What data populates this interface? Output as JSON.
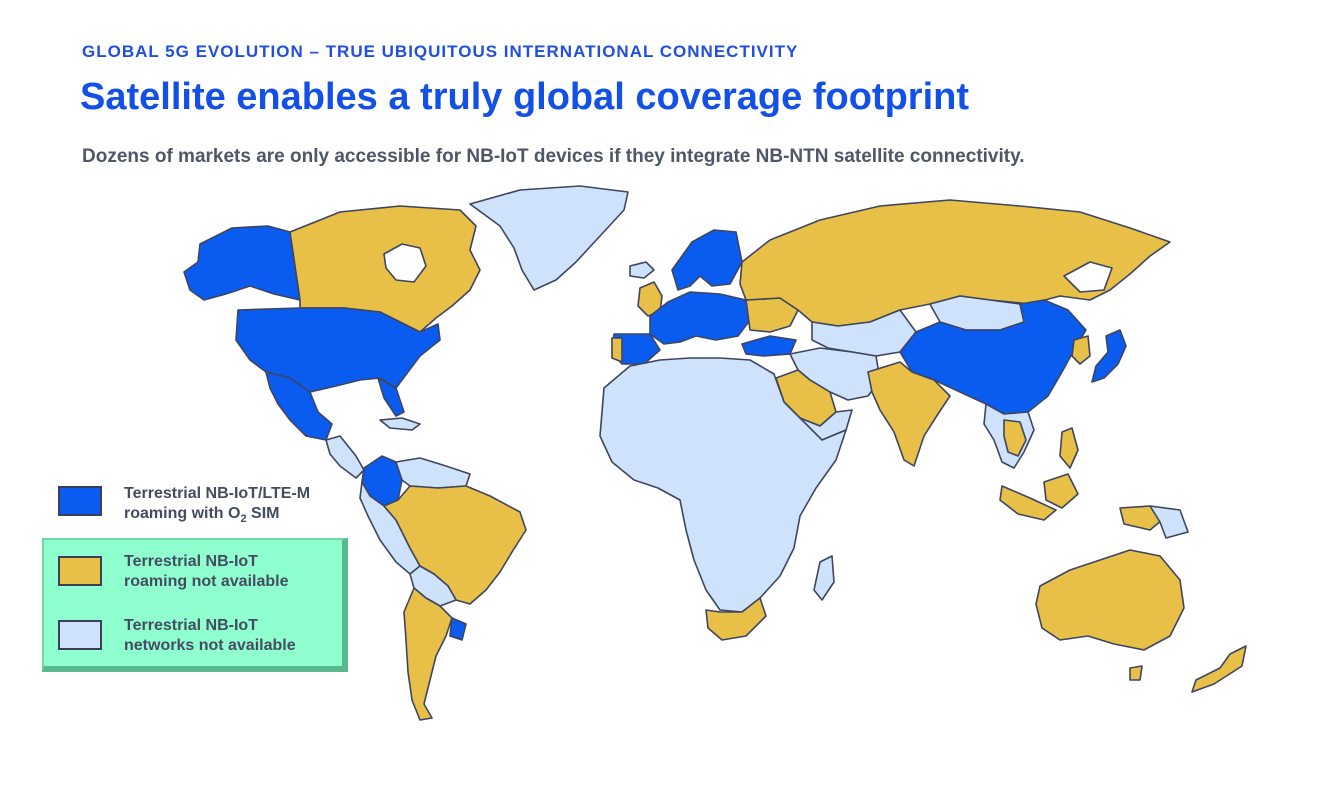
{
  "header": {
    "kicker": "GLOBAL 5G EVOLUTION – TRUE UBIQUITOUS INTERNATIONAL CONNECTIVITY",
    "title": "Satellite enables a truly global coverage footprint",
    "subtitle": "Dozens of markets are only accessible for NB-IoT devices if they integrate NB-NTN satellite connectivity."
  },
  "colors": {
    "roaming_o2": "#0a5cf0",
    "not_available_roaming": "#e8c047",
    "no_network": "#cfe2fb",
    "border": "#3d4560"
  },
  "legend": {
    "roaming_o2": {
      "line1": "Terrestrial NB-IoT/LTE-M",
      "line2_prefix": "roaming with O",
      "line2_sub": "2",
      "line2_suffix": " SIM"
    },
    "not_available_roaming": {
      "line1": "Terrestrial NB-IoT",
      "line2": "roaming not available"
    },
    "no_network": {
      "line1": "Terrestrial NB-IoT",
      "line2": "networks not available"
    }
  }
}
